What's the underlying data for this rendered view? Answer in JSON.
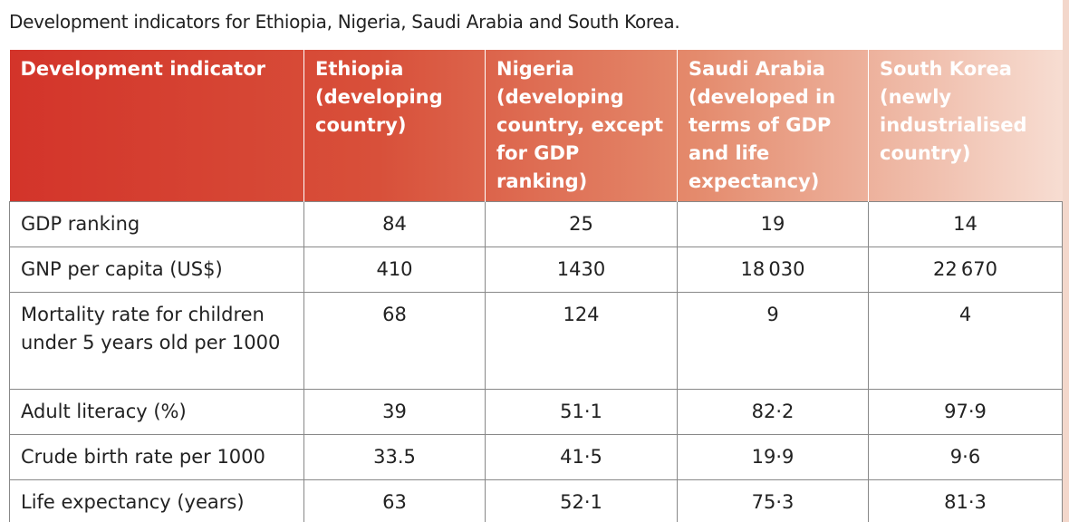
{
  "caption": "Development indicators for Ethiopia, Nigeria, Saudi Arabia and South Korea.",
  "table": {
    "header": [
      "Development indicator",
      "Ethiopia (developing country)",
      "Nigeria (developing country, except for GDP ranking)",
      "Saudi Arabia (developed in terms of GDP and life expectancy)",
      "South Korea (newly industrialised country)"
    ],
    "rows": [
      [
        "GDP ranking",
        "84",
        "25",
        "19",
        "14"
      ],
      [
        "GNP per capita (US$)",
        "410",
        "1430",
        "18 030",
        "22 670"
      ],
      [
        "Mortality rate for children under 5 years old per 1000",
        "68",
        "124",
        "9",
        "4"
      ],
      [
        "Adult literacy (%)",
        "39",
        "51·1",
        "82·2",
        "97·9"
      ],
      [
        "Crude birth rate per 1000",
        "33.5",
        "41·5",
        "19·9",
        "9·6"
      ],
      [
        "Life expectancy (years)",
        "63",
        "52·1",
        "75·3",
        "81·3"
      ]
    ]
  }
}
